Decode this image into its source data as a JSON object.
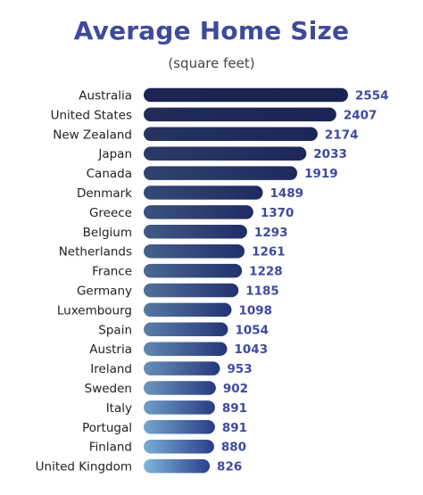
{
  "title": "Average Home Size",
  "subtitle": "(square feet)",
  "colors": {
    "title": "#3f4a9a",
    "value_label": "#3e4aa0",
    "bar_dark": "#1b2452",
    "bar_light": "#7fb6dc"
  },
  "chart_data": {
    "type": "bar",
    "orientation": "horizontal",
    "title": "Average Home Size",
    "subtitle": "(square feet)",
    "categories": [
      "Australia",
      "United States",
      "New Zealand",
      "Japan",
      "Canada",
      "Denmark",
      "Greece",
      "Belgium",
      "Netherlands",
      "France",
      "Germany",
      "Luxembourg",
      "Spain",
      "Austria",
      "Ireland",
      "Sweden",
      "Italy",
      "Portugal",
      "Finland",
      "United Kingdom"
    ],
    "values": [
      2554,
      2407,
      2174,
      2033,
      1919,
      1489,
      1370,
      1293,
      1261,
      1228,
      1185,
      1098,
      1054,
      1043,
      953,
      902,
      891,
      891,
      880,
      826
    ],
    "xlim": [
      0,
      2554
    ],
    "grid": false,
    "legend": "none"
  }
}
